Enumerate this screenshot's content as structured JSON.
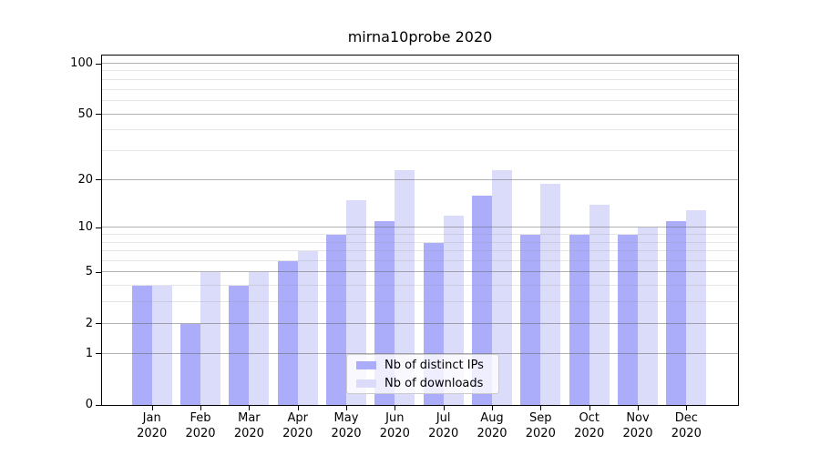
{
  "chart_data": {
    "type": "bar",
    "title": "mirna10probe 2020",
    "year": "2020",
    "categories": [
      "Jan",
      "Feb",
      "Mar",
      "Apr",
      "May",
      "Jun",
      "Jul",
      "Aug",
      "Sep",
      "Oct",
      "Nov",
      "Dec"
    ],
    "series": [
      {
        "name": "Nb of distinct IPs",
        "color": "#abacfa",
        "values": [
          4,
          2,
          4,
          6,
          9,
          11,
          8,
          16,
          9,
          9,
          9,
          11
        ]
      },
      {
        "name": "Nb of downloads",
        "color": "#dbdbfa",
        "values": [
          4,
          5,
          5,
          7,
          15,
          23,
          12,
          23,
          19,
          14,
          10,
          13
        ]
      }
    ],
    "yscale": "log1p",
    "ylim": [
      0,
      112
    ],
    "y_ticks_major": [
      0,
      1,
      2,
      5,
      10,
      20,
      50,
      100
    ],
    "y_ticks_minor": [
      3,
      4,
      6,
      7,
      8,
      9,
      30,
      40,
      60,
      70,
      80,
      90
    ],
    "grid": true,
    "legend_position": "lower center",
    "colors": {
      "axis": "#000000",
      "grid_major": "#b3b3b3",
      "grid_minor": "#e6e6e6",
      "background": "#ffffff"
    }
  }
}
